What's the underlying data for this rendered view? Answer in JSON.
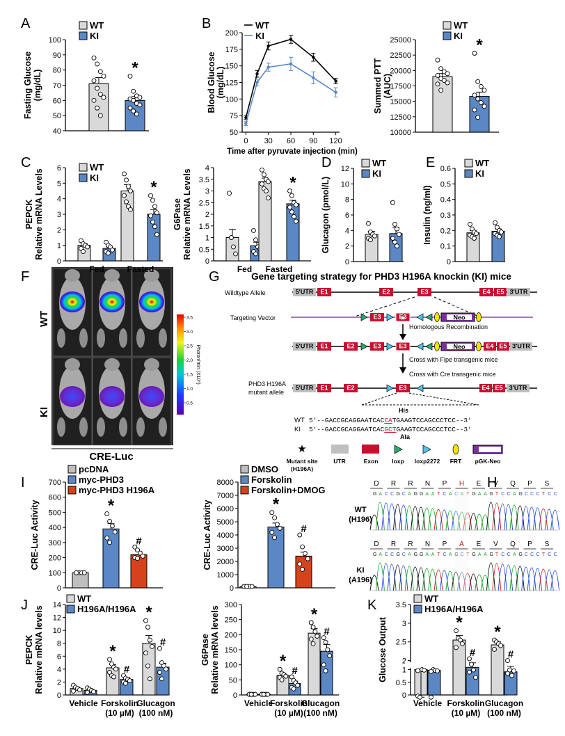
{
  "colors": {
    "wt": "#d9d9d9",
    "ki": "#5b87c5",
    "red": "#d4431b",
    "exon": "#c8102e",
    "line": "#7a4fb0",
    "utr": "#bfbfbf"
  },
  "panels": {
    "A": "A",
    "B": "B",
    "C": "C",
    "D": "D",
    "E": "E",
    "F": "F",
    "G": "G",
    "H": "H",
    "I": "I",
    "J": "J",
    "K": "K"
  },
  "chart_data": [
    {
      "id": "A",
      "type": "bar",
      "ylabel": "Fasting Glucose (mg/dL)",
      "ylim": [
        40,
        100
      ],
      "yticks": [
        40,
        50,
        60,
        70,
        80,
        90,
        100
      ],
      "categories": [
        "WT",
        "KI"
      ],
      "values": [
        71,
        60
      ],
      "sem": [
        4,
        2.5
      ],
      "stars": [
        "",
        "*"
      ],
      "points": [
        [
          88,
          84,
          79,
          76,
          73,
          68,
          64,
          62,
          60,
          55,
          50
        ],
        [
          76,
          66,
          63,
          62,
          61,
          60,
          58,
          57,
          55,
          53,
          51
        ]
      ],
      "legend": [
        "WT",
        "KI"
      ]
    },
    {
      "id": "B",
      "type": "line",
      "ylabel": "Blood Glucose (mg/dL)",
      "xlabel": "Time after pyruvate injection (min)",
      "x": [
        0,
        15,
        30,
        60,
        90,
        120
      ],
      "xlim": [
        -5,
        125
      ],
      "xticks": [
        0,
        30,
        60,
        90,
        120
      ],
      "ylim": [
        50,
        200
      ],
      "yticks": [
        50,
        75,
        100,
        125,
        150,
        175,
        200
      ],
      "series": [
        {
          "name": "WT",
          "values": [
            72,
            138,
            180,
            190,
            163,
            127
          ],
          "err": [
            3,
            5,
            6,
            6,
            6,
            4
          ]
        },
        {
          "name": "KI",
          "values": [
            63,
            125,
            148,
            153,
            132,
            110
          ],
          "err": [
            3,
            5,
            6,
            10,
            9,
            7
          ]
        }
      ]
    },
    {
      "id": "B2",
      "type": "bar",
      "ylabel": "Summed PTT (AUC)",
      "ylim": [
        10000,
        25000
      ],
      "yticks": [
        10000,
        12500,
        15000,
        17500,
        20000,
        22500,
        25000
      ],
      "categories": [
        "WT",
        "KI"
      ],
      "values": [
        19000,
        15800
      ],
      "sem": [
        500,
        700
      ],
      "stars": [
        "",
        "*"
      ],
      "points": [
        [
          21700,
          20300,
          19800,
          19500,
          19200,
          18700,
          18400,
          18000,
          17800,
          16800
        ],
        [
          22800,
          18200,
          17400,
          16800,
          16000,
          15400,
          14800,
          14200,
          13600,
          12400
        ]
      ],
      "legend": [
        "WT",
        "KI"
      ]
    },
    {
      "id": "C1",
      "type": "bar",
      "ylabel": "PEPCK Relative mRNA Levels",
      "ylim": [
        0,
        6
      ],
      "yticks": [
        0,
        1,
        2,
        3,
        4,
        5,
        6
      ],
      "groups": [
        "Fed",
        "Fasted"
      ],
      "series": [
        {
          "name": "WT",
          "values": [
            1.0,
            4.5
          ],
          "sem": [
            0.12,
            0.4
          ]
        },
        {
          "name": "KI",
          "values": [
            0.8,
            3.0
          ],
          "sem": [
            0.1,
            0.3
          ]
        }
      ],
      "stars": [
        "",
        "",
        "",
        "*"
      ],
      "points": [
        [
          1.3,
          1.1,
          1.0,
          0.9,
          0.8,
          0.6
        ],
        [
          1.2,
          1.0,
          0.9,
          0.7,
          0.6,
          0.5
        ],
        [
          5.6,
          5.2,
          4.8,
          4.5,
          4.2,
          3.8,
          3.5,
          3.3
        ],
        [
          4.2,
          3.9,
          3.5,
          3.1,
          2.9,
          2.5,
          2.2,
          1.7
        ]
      ]
    },
    {
      "id": "C2",
      "type": "bar",
      "ylabel": "G6Pase Relative mRNA Levels",
      "ylim": [
        0,
        4
      ],
      "yticks": [
        0,
        0.5,
        1,
        1.5,
        2,
        2.5,
        3,
        3.5,
        4
      ],
      "groups": [
        "Fed",
        "Fasted"
      ],
      "series": [
        {
          "name": "WT",
          "values": [
            1.0,
            3.4
          ],
          "sem": [
            0.35,
            0.15
          ]
        },
        {
          "name": "KI",
          "values": [
            0.65,
            2.45
          ],
          "sem": [
            0.15,
            0.15
          ]
        }
      ],
      "stars": [
        "",
        "",
        "",
        "*"
      ],
      "points": [
        [
          2.9,
          1.0,
          0.6,
          0.3
        ],
        [
          1.3,
          0.9,
          0.6,
          0.5,
          0.4,
          0.3
        ],
        [
          3.9,
          3.7,
          3.5,
          3.4,
          3.3,
          3.1,
          3.0,
          2.7
        ],
        [
          3.0,
          2.8,
          2.5,
          2.4,
          2.3,
          2.1,
          1.9,
          1.7
        ]
      ]
    },
    {
      "id": "D",
      "type": "bar",
      "ylabel": "Glucagon (pmol/L)",
      "ylim": [
        0,
        12
      ],
      "yticks": [
        0,
        2,
        4,
        6,
        8,
        10,
        12
      ],
      "categories": [
        "WT",
        "KI"
      ],
      "values": [
        3.5,
        3.6
      ],
      "sem": [
        0.4,
        0.8
      ],
      "stars": [
        "",
        ""
      ],
      "points": [
        [
          4.9,
          3.8,
          3.5,
          3.3,
          3.0,
          2.8
        ],
        [
          7.6,
          4.8,
          4.2,
          3.5,
          3.0,
          2.5,
          2.0
        ]
      ],
      "legend": [
        "WT",
        "KI"
      ]
    },
    {
      "id": "E",
      "type": "bar",
      "ylabel": "Insulin (ng/ml)",
      "ylim": [
        0,
        0.6
      ],
      "yticks": [
        0,
        0.1,
        0.2,
        0.3,
        0.4,
        0.5,
        0.6
      ],
      "categories": [
        "WT",
        "KI"
      ],
      "values": [
        0.185,
        0.195
      ],
      "sem": [
        0.015,
        0.015
      ],
      "stars": [
        "",
        ""
      ],
      "points": [
        [
          0.24,
          0.21,
          0.19,
          0.18,
          0.17,
          0.16,
          0.15
        ],
        [
          0.25,
          0.22,
          0.2,
          0.19,
          0.18,
          0.17,
          0.16
        ]
      ],
      "legend": [
        "WT",
        "KI"
      ]
    },
    {
      "id": "I1",
      "type": "bar",
      "ylabel": "CRE-Luc Activity",
      "ylim": [
        0,
        700
      ],
      "yticks": [
        0,
        100,
        200,
        300,
        400,
        500,
        600,
        700
      ],
      "categories": [
        "pcDNA",
        "myc-PHD3",
        "myc-PHD3 H196A"
      ],
      "values": [
        100,
        390,
        220
      ],
      "sem": [
        3,
        35,
        20
      ],
      "stars": [
        "",
        "*",
        "#"
      ],
      "points": [
        [
          100,
          100,
          100,
          100,
          100
        ],
        [
          490,
          440,
          410,
          370,
          330,
          300
        ],
        [
          270,
          250,
          230,
          210,
          200,
          195
        ]
      ],
      "legend": [
        "pcDNA",
        "myc-PHD3",
        "myc-PHD3 H196A"
      ]
    },
    {
      "id": "I2",
      "type": "bar",
      "ylabel": "CRE-Luc Activity",
      "ylim": [
        0,
        8000
      ],
      "yticks": [
        0,
        1000,
        2000,
        3000,
        4000,
        5000,
        6000,
        7000,
        8000
      ],
      "categories": [
        "DMSO",
        "Forskolin",
        "Forskolin+DMOG"
      ],
      "values": [
        100,
        4600,
        2400
      ],
      "sem": [
        10,
        300,
        300
      ],
      "stars": [
        "",
        "*",
        "#"
      ],
      "points": [
        [
          100,
          100,
          100,
          100,
          100,
          100
        ],
        [
          5700,
          5300,
          4800,
          4500,
          4200,
          3800
        ],
        [
          4000,
          3100,
          2600,
          2200,
          1800,
          1400
        ]
      ],
      "legend": [
        "DMSO",
        "Forskolin",
        "Forskolin+DMOG"
      ]
    },
    {
      "id": "J1",
      "type": "bar",
      "ylabel": "PEPCK Relative mRNA levels",
      "ylim": [
        0,
        14
      ],
      "yticks": [
        0,
        2,
        4,
        6,
        8,
        10,
        12,
        14
      ],
      "groups": [
        "Vehicle",
        "Forskolin (10 µM)",
        "Glucagon (100 nM)"
      ],
      "series": [
        {
          "name": "WT",
          "values": [
            1.0,
            4.2,
            8.0
          ],
          "sem": [
            0.2,
            0.5,
            1.2
          ]
        },
        {
          "name": "H196A/H196A",
          "values": [
            0.7,
            2.4,
            4.3
          ],
          "sem": [
            0.15,
            0.3,
            0.6
          ]
        }
      ],
      "stars": [
        "",
        "",
        "*",
        "#",
        "*",
        "#"
      ],
      "points": [
        [
          1.5,
          1.2,
          1.0,
          0.8,
          0.6
        ],
        [
          1.1,
          0.9,
          0.7,
          0.5,
          0.4
        ],
        [
          5.5,
          4.8,
          4.3,
          4.0,
          3.5,
          3.0,
          2.8
        ],
        [
          3.0,
          2.6,
          2.4,
          2.2,
          2.0,
          1.8
        ],
        [
          11.5,
          10.5,
          8.5,
          7.5,
          6.5,
          4.5,
          2.5
        ],
        [
          7.2,
          5.0,
          4.5,
          4.0,
          3.5,
          2.5
        ]
      ],
      "legend": [
        "WT",
        "H196A/H196A"
      ]
    },
    {
      "id": "J2",
      "type": "bar",
      "ylabel": "G6Pase Relative mRNA levels",
      "ylim": [
        0,
        300
      ],
      "yticks": [
        0,
        50,
        100,
        150,
        200,
        250,
        300
      ],
      "groups": [
        "Vehicle",
        "Forskolin (10 µM)",
        "Glucagon (100 nM)"
      ],
      "series": [
        {
          "name": "WT",
          "values": [
            2,
            65,
            205
          ],
          "sem": [
            1,
            6,
            15
          ]
        },
        {
          "name": "H196A/H196A",
          "values": [
            2,
            38,
            145
          ],
          "sem": [
            1,
            8,
            22
          ]
        }
      ],
      "stars": [
        "",
        "",
        "*",
        "#",
        "*",
        "#"
      ],
      "points": [
        [
          2,
          2,
          2,
          2,
          2,
          2
        ],
        [
          2,
          2,
          2,
          2,
          2,
          2
        ],
        [
          85,
          72,
          68,
          62,
          58,
          50
        ],
        [
          60,
          48,
          40,
          32,
          25,
          20
        ],
        [
          240,
          225,
          210,
          195,
          185,
          170
        ],
        [
          190,
          175,
          150,
          130,
          100,
          80
        ]
      ]
    },
    {
      "id": "K",
      "type": "bar",
      "ylabel": "Glucose Output",
      "ylim": [
        0,
        3.5
      ],
      "broken": [
        1.0,
        2.0
      ],
      "yticks": [
        0,
        0.5,
        1.0,
        2.0,
        2.5,
        3.0,
        3.5
      ],
      "groups": [
        "Vehicle",
        "Forskolin (10 µM)",
        "Glucagon (100 nM)"
      ],
      "series": [
        {
          "name": "WT",
          "values": [
            1.0,
            2.55,
            2.42
          ],
          "sem": [
            0.02,
            0.12,
            0.08
          ]
        },
        {
          "name": "H196A/H196A",
          "values": [
            0.97,
            1.82,
            1.7
          ],
          "sem": [
            0.03,
            0.12,
            0.15
          ]
        }
      ],
      "stars": [
        "",
        "",
        "*",
        "#",
        "*",
        "#"
      ],
      "points": [
        [
          1.05,
          1.02,
          1.0,
          0.98,
          0.96
        ],
        [
          1.02,
          1.0,
          0.97,
          0.95,
          0.93
        ],
        [
          2.8,
          2.6,
          2.55,
          2.45,
          2.35
        ],
        [
          2.05,
          1.9,
          1.75,
          1.55,
          0.9
        ],
        [
          2.55,
          2.5,
          2.45,
          2.4,
          2.3
        ],
        [
          2.0,
          1.75,
          1.6,
          0.95,
          0.85
        ]
      ],
      "legend": [
        "WT",
        "H196A/H196A"
      ]
    }
  ],
  "imaging": {
    "rows": [
      "WT",
      "KI"
    ],
    "xlabel": "CRE-Luc",
    "colorbar": {
      "ticks": [
        "3.5",
        "3.0",
        "2.5",
        "2.0",
        "1.5",
        "1.0",
        "0.5"
      ],
      "label": "Photon/min (X10⁵)"
    }
  },
  "targeting": {
    "title": "Gene targeting strategy for PHD3 H196A knockin (KI) mice",
    "rows": [
      {
        "label": "Wildtype Allele"
      },
      {
        "label": "Targeting Vector"
      },
      {
        "label": ""
      },
      {
        "label": "PHD3 H196A mutant allele"
      }
    ],
    "labels": {
      "utr5": "5'UTR",
      "utr3": "3'UTR",
      "e1": "E1",
      "e2": "E2",
      "e3": "E3",
      "e4": "E4",
      "e5": "E5",
      "neo": "Neo",
      "e3mut": "E3"
    },
    "steps": [
      "Homologous Recombination",
      "Cross with Flpe transgenic mice",
      "Cross with Cre transgenic mice"
    ],
    "seq": {
      "his": "His",
      "ala": "Ala",
      "wt_label": "WT",
      "ki_label": "KI",
      "wt_pre": "5'--GACCGCAGGAATCAC",
      "wt_mut": "CA",
      "wt_post": "TGAAGTCCAGCCCTCC--3'",
      "ki_pre": "5'--GACCGCAGGAATCAC",
      "ki_mut": "GCT",
      "ki_post": "GAAGTCCAGCCCTCC--3'"
    },
    "legend": [
      "Mutant site (H196A)",
      "UTR",
      "Exon",
      "loxp",
      "loxp2272",
      "FRT",
      "pGK-Neo"
    ]
  },
  "chromatogram": {
    "wt": {
      "label": "WT (H196)",
      "aa": [
        "D",
        "R",
        "R",
        "N",
        "P",
        "H",
        "E",
        "V",
        "Q",
        "P",
        "S"
      ],
      "seq": "GACCGCAGGAATCACATGAAGTCCAGCCCTCC"
    },
    "ki": {
      "label": "KI (A196)",
      "aa": [
        "D",
        "R",
        "R",
        "N",
        "P",
        "A",
        "E",
        "V",
        "Q",
        "P",
        "S"
      ],
      "seq": "GACCGCAGGAATCAGCTGAAGTCCAGCCCTCC"
    }
  }
}
